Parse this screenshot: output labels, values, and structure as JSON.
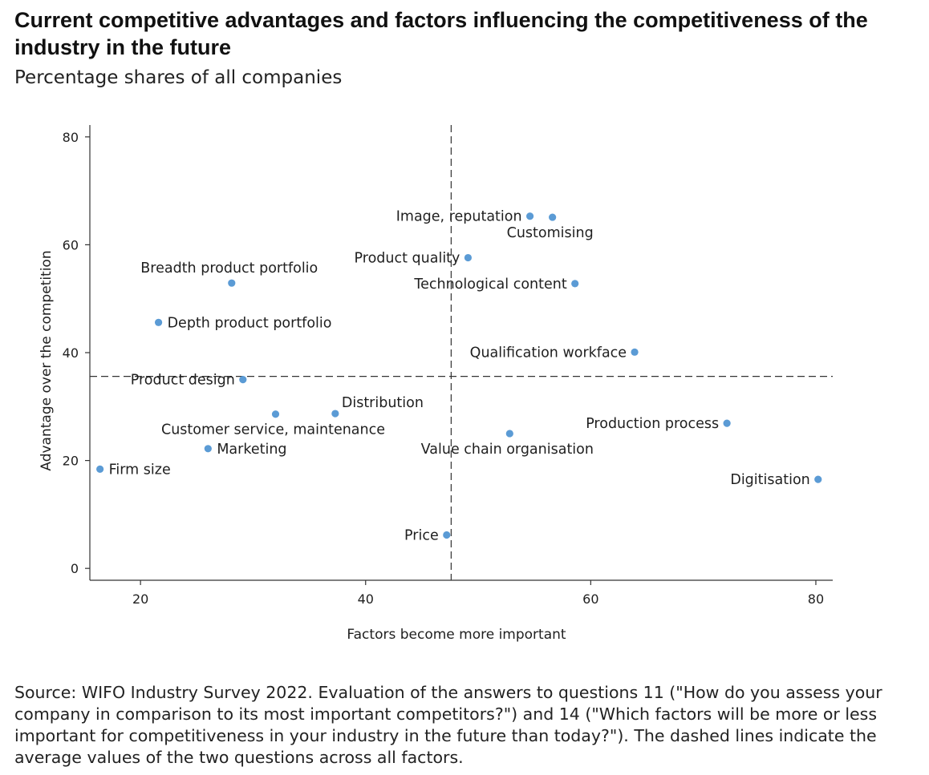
{
  "header": {
    "title": "Current competitive advantages and factors influencing the competitiveness of the industry in the future",
    "subtitle": "Percentage shares of all companies"
  },
  "footer": {
    "source": "Source: WIFO Industry Survey 2022. Evaluation of the answers to questions 11 (\"How do you assess your company in comparison to its most important competitors?\") and 14 (\"Which factors will be more or less important for competitiveness in your industry in the future than today?\"). The dashed lines indicate the average values of the two questions across all factors."
  },
  "chart_data": {
    "type": "scatter",
    "xlabel": "Factors become more important",
    "ylabel": "Advantage over the competition",
    "xlim": [
      15.5,
      81.5
    ],
    "ylim": [
      -2.2,
      82.2
    ],
    "xticks": [
      20,
      40,
      60,
      80
    ],
    "yticks": [
      0,
      20,
      40,
      60,
      80
    ],
    "grid": false,
    "point_color": "#5b9bd5",
    "reference_lines": {
      "x_mean": 47.6,
      "y_mean": 35.6
    },
    "points": [
      {
        "label": "Image, reputation",
        "x": 54.6,
        "y": 65.3,
        "label_pos": "left"
      },
      {
        "label": "Customising",
        "x": 56.6,
        "y": 65.1,
        "label_pos": "below"
      },
      {
        "label": "Product quality",
        "x": 49.1,
        "y": 57.6,
        "label_pos": "left"
      },
      {
        "label": "Technological content",
        "x": 58.6,
        "y": 52.8,
        "label_pos": "left"
      },
      {
        "label": "Breadth product portfolio",
        "x": 28.1,
        "y": 52.9,
        "label_pos": "above"
      },
      {
        "label": "Depth product portfolio",
        "x": 21.6,
        "y": 45.6,
        "label_pos": "right"
      },
      {
        "label": "Qualification workface",
        "x": 63.9,
        "y": 40.1,
        "label_pos": "left"
      },
      {
        "label": "Product design",
        "x": 29.1,
        "y": 35.0,
        "label_pos": "left"
      },
      {
        "label": "Distribution",
        "x": 37.3,
        "y": 28.7,
        "label_pos": "above-right"
      },
      {
        "label": "Customer service, maintenance",
        "x": 32.0,
        "y": 28.6,
        "label_pos": "below"
      },
      {
        "label": "Production process",
        "x": 72.1,
        "y": 26.9,
        "label_pos": "left"
      },
      {
        "label": "Value chain organisation",
        "x": 52.8,
        "y": 25.0,
        "label_pos": "below"
      },
      {
        "label": "Marketing",
        "x": 26.0,
        "y": 22.2,
        "label_pos": "right"
      },
      {
        "label": "Firm size",
        "x": 16.4,
        "y": 18.4,
        "label_pos": "right"
      },
      {
        "label": "Digitisation",
        "x": 80.2,
        "y": 16.5,
        "label_pos": "left"
      },
      {
        "label": "Price",
        "x": 47.2,
        "y": 6.2,
        "label_pos": "left"
      }
    ]
  }
}
